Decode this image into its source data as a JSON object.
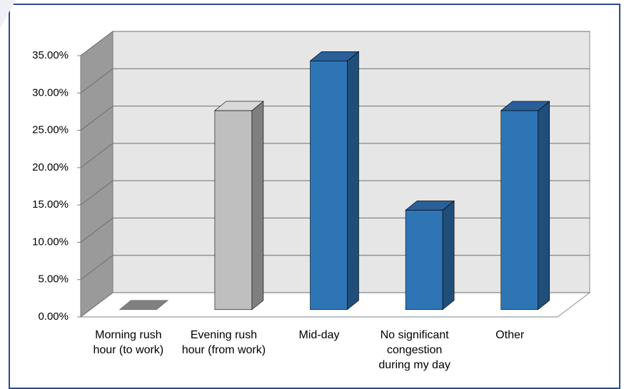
{
  "chart_data": {
    "type": "bar3d",
    "categories": [
      "Morning rush hour (to work)",
      "Evening rush hour (from work)",
      "Mid-day",
      "No significant congestion during my day",
      "Other"
    ],
    "values": [
      0,
      26.67,
      33.33,
      13.33,
      26.67
    ],
    "colors": [
      "#808080",
      "#bfbfbf",
      "#2e75b6",
      "#2e75b6",
      "#2e75b6"
    ],
    "ylim": [
      0,
      35
    ],
    "yticks": [
      {
        "value": 0,
        "label": "0.00%"
      },
      {
        "value": 5,
        "label": "5.00%"
      },
      {
        "value": 10,
        "label": "10.00%"
      },
      {
        "value": 15,
        "label": "15.00%"
      },
      {
        "value": 20,
        "label": "20.00%"
      },
      {
        "value": 25,
        "label": "25.00%"
      },
      {
        "value": 30,
        "label": "30.00%"
      },
      {
        "value": 35,
        "label": "35.00%"
      }
    ],
    "grid": true
  }
}
